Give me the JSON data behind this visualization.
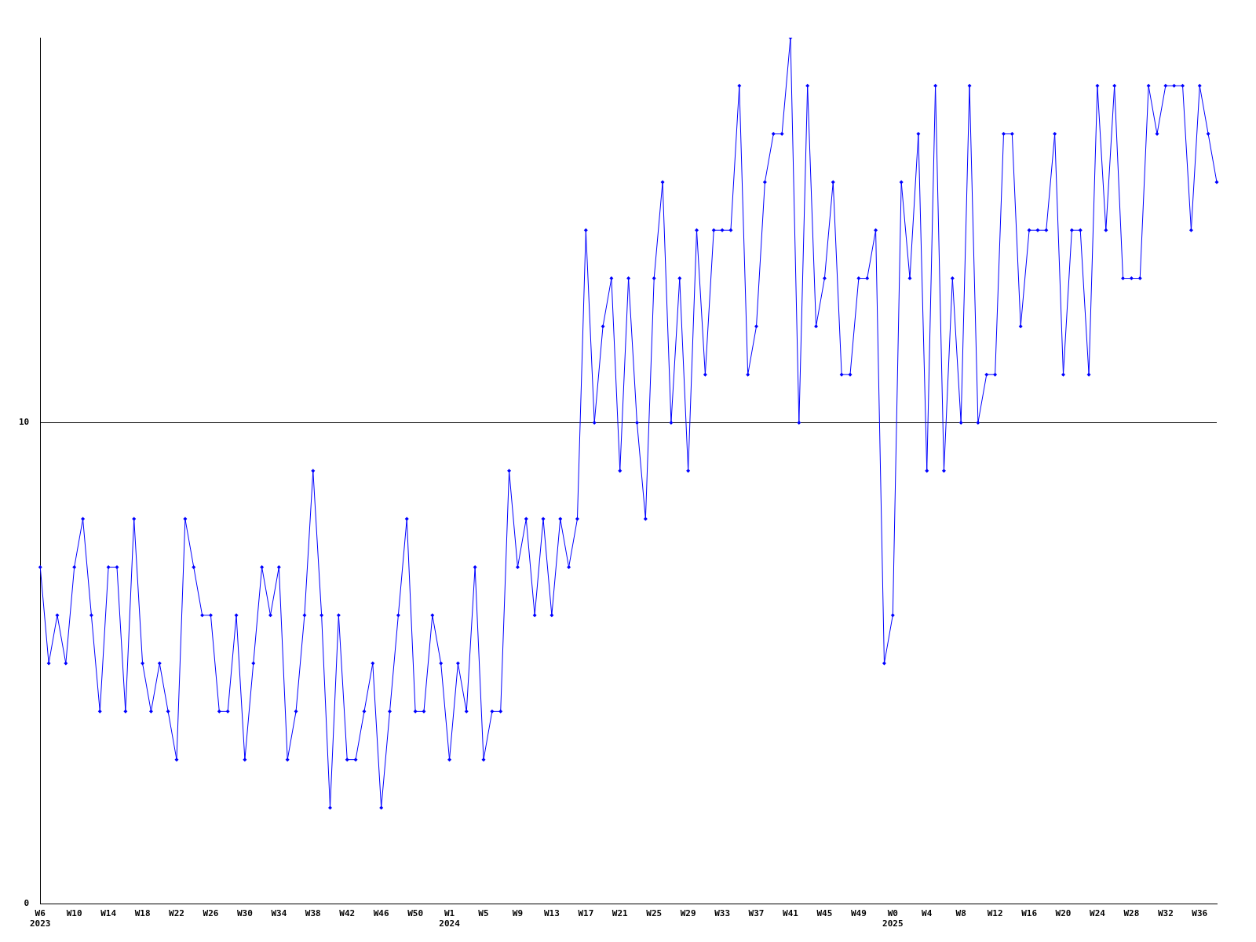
{
  "chart_data": {
    "type": "line",
    "categories": [
      "W6\n2023",
      null,
      null,
      null,
      "W10",
      null,
      null,
      null,
      "W14",
      null,
      null,
      null,
      "W18",
      null,
      null,
      null,
      "W22",
      null,
      null,
      null,
      "W26",
      null,
      null,
      null,
      "W30",
      null,
      null,
      null,
      "W34",
      null,
      null,
      null,
      "W38",
      null,
      null,
      null,
      "W42",
      null,
      null,
      null,
      "W46",
      null,
      null,
      null,
      "W50",
      null,
      null,
      null,
      "W1\n2024",
      null,
      null,
      null,
      "W5",
      null,
      null,
      null,
      "W9",
      null,
      null,
      null,
      "W13",
      null,
      null,
      null,
      "W17",
      null,
      null,
      null,
      "W21",
      null,
      null,
      null,
      "W25",
      null,
      null,
      null,
      "W29",
      null,
      null,
      null,
      "W33",
      null,
      null,
      null,
      "W37",
      null,
      null,
      null,
      "W41",
      null,
      null,
      null,
      "W45",
      null,
      null,
      null,
      "W49",
      null,
      null,
      null,
      "W0\n2025",
      null,
      null,
      null,
      "W4",
      null,
      null,
      null,
      "W8",
      null,
      null,
      null,
      "W12",
      null,
      null,
      null,
      "W16",
      null,
      null,
      null,
      "W20",
      null,
      null,
      null,
      "W24",
      null,
      null,
      null,
      "W28",
      null,
      null,
      null,
      "W32",
      null,
      null,
      null,
      "W36",
      null,
      null
    ],
    "series": [
      {
        "color": "#0000ff",
        "values": [
          7,
          5,
          6,
          5,
          7,
          8,
          6,
          4,
          7,
          7,
          4,
          8,
          5,
          4,
          5,
          4,
          3,
          8,
          7,
          6,
          6,
          4,
          4,
          6,
          3,
          5,
          7,
          6,
          7,
          3,
          4,
          6,
          9,
          6,
          2,
          6,
          3,
          3,
          4,
          5,
          2,
          4,
          6,
          8,
          4,
          4,
          6,
          5,
          3,
          5,
          4,
          7,
          3,
          4,
          4,
          9,
          7,
          8,
          6,
          8,
          6,
          8,
          7,
          8,
          14,
          10,
          12,
          13,
          9,
          13,
          10,
          8,
          13,
          15,
          10,
          13,
          9,
          14,
          11,
          14,
          14,
          14,
          17,
          11,
          12,
          15,
          16,
          16,
          18,
          10,
          17,
          12,
          13,
          15,
          11,
          11,
          13,
          13,
          14,
          5,
          6,
          15,
          13,
          16,
          9,
          17,
          9,
          13,
          10,
          17,
          10,
          11,
          11,
          16,
          16,
          12,
          14,
          14,
          14,
          16,
          11,
          14,
          14,
          11,
          17,
          14,
          17,
          13,
          13,
          13,
          17,
          16,
          17,
          17,
          17,
          14,
          17,
          16,
          15
        ]
      }
    ],
    "ylim": [
      0,
      18
    ],
    "yticks": [
      0,
      10
    ],
    "grid": "y",
    "legend": false,
    "marker": "diamond",
    "line_style": "solid"
  }
}
